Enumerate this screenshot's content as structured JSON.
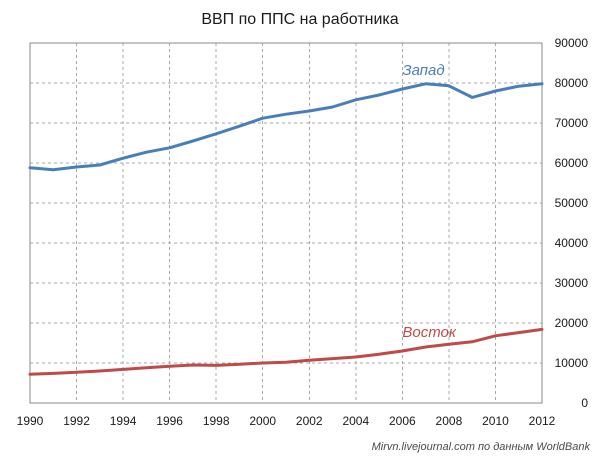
{
  "chart_data": {
    "type": "line",
    "title": "ВВП по ППС на работника",
    "source_note": "Mirvn.livejournal.com по данным WorldBank",
    "x": [
      1990,
      1991,
      1992,
      1993,
      1994,
      1995,
      1996,
      1997,
      1998,
      1999,
      2000,
      2001,
      2002,
      2003,
      2004,
      2005,
      2006,
      2007,
      2008,
      2009,
      2010,
      2011,
      2012
    ],
    "x_ticks": [
      "1990",
      "1992",
      "1994",
      "1996",
      "1998",
      "2000",
      "2002",
      "2004",
      "2006",
      "2008",
      "2010",
      "2012"
    ],
    "xlim": [
      1990,
      2012
    ],
    "y_ticks": [
      "0",
      "10000",
      "20000",
      "30000",
      "40000",
      "50000",
      "60000",
      "70000",
      "80000",
      "90000"
    ],
    "ylim": [
      0,
      90000
    ],
    "y_axis_side": "right",
    "grid": true,
    "series": [
      {
        "name": "Запад",
        "color": "#4a7ebb",
        "values": [
          58800,
          58300,
          59000,
          59500,
          61200,
          62700,
          63800,
          65500,
          67300,
          69200,
          71200,
          72200,
          73000,
          74000,
          75800,
          77000,
          78500,
          79800,
          79300,
          76400,
          78000,
          79200,
          79800
        ]
      },
      {
        "name": "Восток",
        "color": "#be4b48",
        "values": [
          7200,
          7400,
          7700,
          8000,
          8400,
          8800,
          9200,
          9500,
          9400,
          9700,
          10000,
          10200,
          10700,
          11100,
          11500,
          12200,
          13000,
          14000,
          14700,
          15300,
          16800,
          17600,
          18400
        ]
      }
    ]
  }
}
